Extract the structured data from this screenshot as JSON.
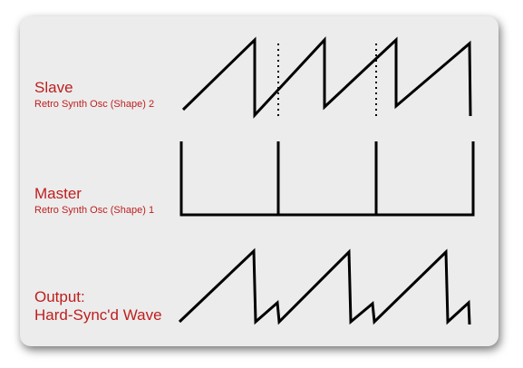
{
  "slave": {
    "title": "Slave",
    "subtitle": "Retro Synth Osc (Shape) 2"
  },
  "master": {
    "title": "Master",
    "subtitle": "Retro Synth Osc (Shape) 1"
  },
  "output": {
    "title_line1": "Output:",
    "title_line2": "Hard-Sync'd Wave"
  },
  "colors": {
    "label": "#bf1e1e",
    "panel": "#ececec",
    "stroke": "#000000"
  }
}
